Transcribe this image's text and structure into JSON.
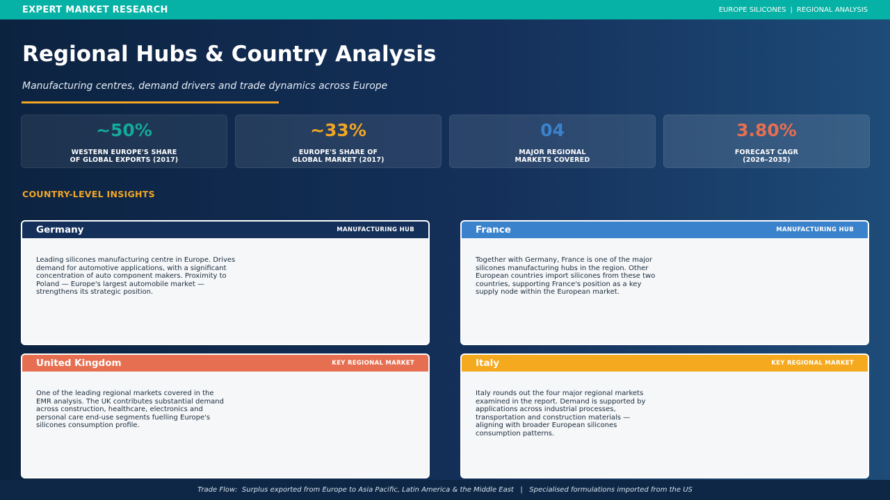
{
  "header": {
    "brand": "EXPERT MARKET RESEARCH",
    "crumb_1": "EUROPE SILICONES",
    "crumb_sep": "|",
    "crumb_2": "REGIONAL ANALYSIS"
  },
  "page": {
    "title": "Regional Hubs & Country Analysis",
    "subtitle": "Manufacturing centres, demand drivers and trade dynamics across Europe"
  },
  "colors": {
    "teal": "#06b2a5",
    "amber": "#f3a623",
    "blue": "#3b82cc",
    "coral": "#e76f51",
    "navy": "#14305a"
  },
  "stats": [
    {
      "value": "~50%",
      "label": "WESTERN EUROPE'S SHARE\nOF GLOBAL EXPORTS (2017)",
      "color": "#14a99b"
    },
    {
      "value": "~33%",
      "label": "EUROPE'S SHARE OF\nGLOBAL MARKET (2017)",
      "color": "#f3a623"
    },
    {
      "value": "04",
      "label": "MAJOR REGIONAL\nMARKETS COVERED",
      "color": "#3b82cc"
    },
    {
      "value": "3.80%",
      "label": "FORECAST CAGR\n(2026–2035)",
      "color": "#e76f51"
    }
  ],
  "section": {
    "heading": "COUNTRY-LEVEL INSIGHTS"
  },
  "cards": [
    {
      "name": "Germany",
      "tag": "MANUFACTURING HUB",
      "header_color": "#14305a",
      "body": "Leading silicones manufacturing centre in Europe. Drives demand for automotive applications, with a significant concentration of auto component makers. Proximity to Poland — Europe's largest automobile market — strengthens its strategic position."
    },
    {
      "name": "France",
      "tag": "MANUFACTURING HUB",
      "header_color": "#3b82cc",
      "body": "Together with Germany, France is one of the major silicones manufacturing hubs in the region. Other European countries import silicones from these two countries, supporting France's position as a key supply node within the European market."
    },
    {
      "name": "United Kingdom",
      "tag": "KEY REGIONAL MARKET",
      "header_color": "#e76f51",
      "body": "One of the leading regional markets covered in the EMR analysis. The UK contributes substantial demand across construction, healthcare, electronics and personal care end-use segments fuelling Europe's silicones consumption profile."
    },
    {
      "name": "Italy",
      "tag": "KEY REGIONAL MARKET",
      "header_color": "#f5a91e",
      "body": "Italy rounds out the four major regional markets examined in the report. Demand is supported by applications across industrial processes, transportation and construction materials — aligning with broader European silicones consumption patterns."
    }
  ],
  "footer": {
    "text": "Trade Flow:  Surplus exported from Europe to Asia Pacific, Latin America & the Middle East   |   Specialised formulations imported from the US"
  }
}
